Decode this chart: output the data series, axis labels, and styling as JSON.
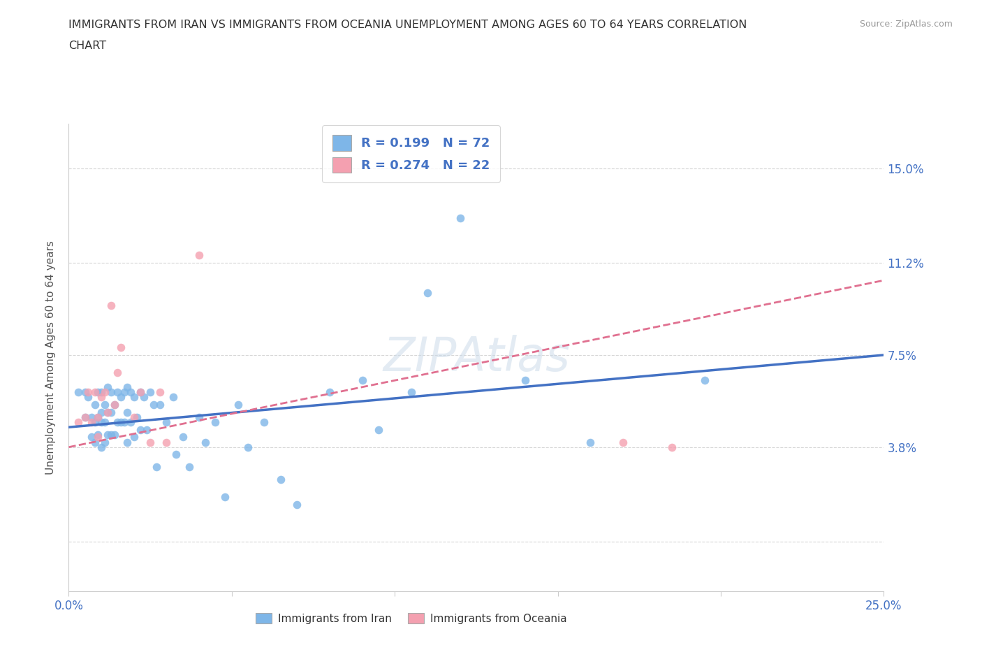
{
  "title_line1": "IMMIGRANTS FROM IRAN VS IMMIGRANTS FROM OCEANIA UNEMPLOYMENT AMONG AGES 60 TO 64 YEARS CORRELATION",
  "title_line2": "CHART",
  "source_text": "Source: ZipAtlas.com",
  "ylabel": "Unemployment Among Ages 60 to 64 years",
  "xlim": [
    0.0,
    0.25
  ],
  "ylim": [
    -0.02,
    0.168
  ],
  "yticks": [
    0.0,
    0.038,
    0.075,
    0.112,
    0.15
  ],
  "ytick_labels": [
    "",
    "3.8%",
    "7.5%",
    "11.2%",
    "15.0%"
  ],
  "xticks": [
    0.0,
    0.05,
    0.1,
    0.15,
    0.2,
    0.25
  ],
  "xtick_labels": [
    "0.0%",
    "",
    "",
    "",
    "",
    "25.0%"
  ],
  "legend_iran_R": "0.199",
  "legend_iran_N": "72",
  "legend_oceania_R": "0.274",
  "legend_oceania_N": "22",
  "color_iran": "#7EB6E8",
  "color_oceania": "#F4A0B0",
  "color_line_iran": "#4472C4",
  "color_line_oceania": "#E07090",
  "iran_x": [
    0.003,
    0.005,
    0.005,
    0.006,
    0.007,
    0.007,
    0.008,
    0.008,
    0.008,
    0.009,
    0.009,
    0.009,
    0.01,
    0.01,
    0.01,
    0.01,
    0.011,
    0.011,
    0.011,
    0.012,
    0.012,
    0.012,
    0.013,
    0.013,
    0.013,
    0.014,
    0.014,
    0.015,
    0.015,
    0.016,
    0.016,
    0.017,
    0.017,
    0.018,
    0.018,
    0.018,
    0.019,
    0.019,
    0.02,
    0.02,
    0.021,
    0.022,
    0.022,
    0.023,
    0.024,
    0.025,
    0.026,
    0.027,
    0.028,
    0.03,
    0.032,
    0.033,
    0.035,
    0.037,
    0.04,
    0.042,
    0.045,
    0.048,
    0.052,
    0.055,
    0.06,
    0.065,
    0.07,
    0.08,
    0.09,
    0.095,
    0.105,
    0.11,
    0.12,
    0.14,
    0.16,
    0.195
  ],
  "iran_y": [
    0.06,
    0.06,
    0.05,
    0.058,
    0.05,
    0.042,
    0.055,
    0.048,
    0.04,
    0.06,
    0.05,
    0.043,
    0.06,
    0.052,
    0.048,
    0.038,
    0.055,
    0.048,
    0.04,
    0.062,
    0.052,
    0.043,
    0.06,
    0.052,
    0.043,
    0.055,
    0.043,
    0.06,
    0.048,
    0.058,
    0.048,
    0.06,
    0.048,
    0.062,
    0.052,
    0.04,
    0.06,
    0.048,
    0.058,
    0.042,
    0.05,
    0.06,
    0.045,
    0.058,
    0.045,
    0.06,
    0.055,
    0.03,
    0.055,
    0.048,
    0.058,
    0.035,
    0.042,
    0.03,
    0.05,
    0.04,
    0.048,
    0.018,
    0.055,
    0.038,
    0.048,
    0.025,
    0.015,
    0.06,
    0.065,
    0.045,
    0.06,
    0.1,
    0.13,
    0.065,
    0.04,
    0.065
  ],
  "oceania_x": [
    0.003,
    0.005,
    0.006,
    0.007,
    0.008,
    0.009,
    0.009,
    0.01,
    0.011,
    0.012,
    0.013,
    0.014,
    0.015,
    0.016,
    0.02,
    0.022,
    0.025,
    0.028,
    0.03,
    0.04,
    0.17,
    0.185
  ],
  "oceania_y": [
    0.048,
    0.05,
    0.06,
    0.048,
    0.06,
    0.05,
    0.042,
    0.058,
    0.06,
    0.052,
    0.095,
    0.055,
    0.068,
    0.078,
    0.05,
    0.06,
    0.04,
    0.06,
    0.04,
    0.115,
    0.04,
    0.038
  ]
}
